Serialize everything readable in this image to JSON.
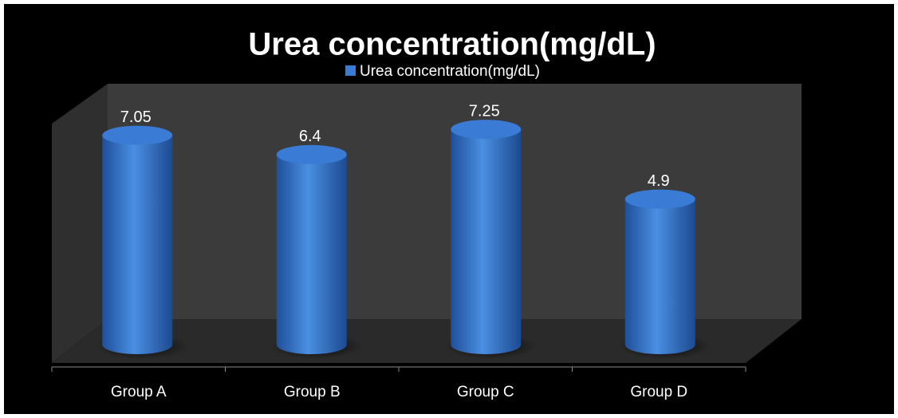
{
  "chart_data": {
    "type": "bar",
    "title": "Urea concentration(mg/dL)",
    "categories": [
      "Group A",
      "Group B",
      "Group C",
      "Group D"
    ],
    "series": [
      {
        "name": "Urea concentration(mg/dL)",
        "color": "#3a7bd5",
        "values": [
          7.05,
          6.4,
          7.25,
          4.9
        ]
      }
    ],
    "ylim": [
      0,
      9
    ]
  }
}
